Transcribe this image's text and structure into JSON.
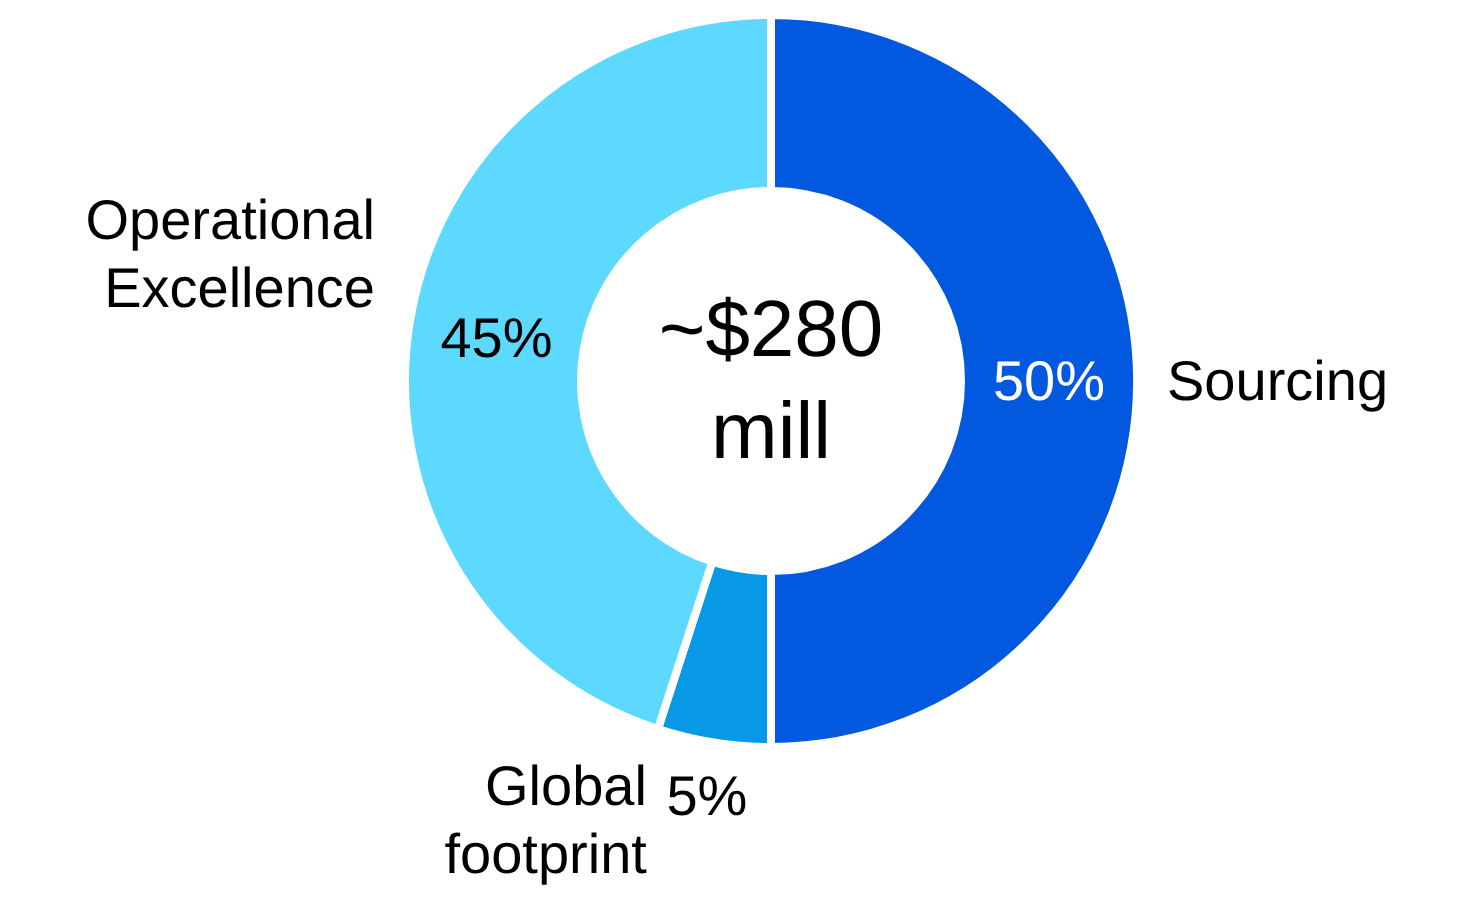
{
  "chart_data": {
    "type": "donut",
    "categories": [
      "Sourcing",
      "Global footprint",
      "Operational Excellence"
    ],
    "values": [
      50,
      5,
      45
    ],
    "colors": [
      "#0358e0",
      "#0899e6",
      "#5dd8ff"
    ],
    "value_labels": [
      "50%",
      "5%",
      "45%"
    ],
    "annotations": [
      "~$280\nmill"
    ]
  }
}
